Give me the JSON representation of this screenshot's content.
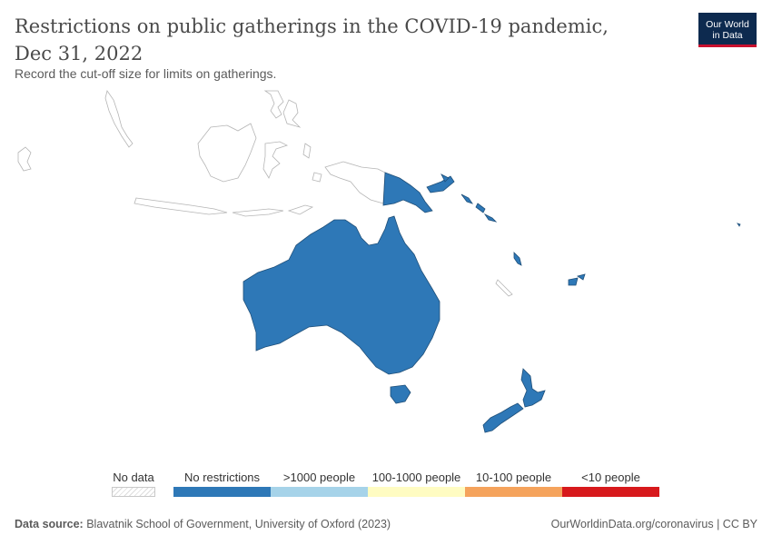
{
  "header": {
    "title": "Restrictions on public gatherings in the COVID-19 pandemic, Dec 31, 2022",
    "subtitle": "Record the cut-off size for limits on gatherings."
  },
  "logo": {
    "line1": "Our World",
    "line2": "in Data"
  },
  "legend": {
    "no_data_label": "No data",
    "categories": [
      {
        "label": "No restrictions",
        "color": "#2e78b7"
      },
      {
        "label": ">1000 people",
        "color": "#a6d3e9"
      },
      {
        "label": "100-1000 people",
        "color": "#fffcc2"
      },
      {
        "label": "10-100 people",
        "color": "#f5a35c"
      },
      {
        "label": "<10 people",
        "color": "#d7191c"
      }
    ]
  },
  "map_data": {
    "region": "Oceania",
    "countries": [
      {
        "name": "Australia",
        "category": "No restrictions"
      },
      {
        "name": "New Zealand",
        "category": "No restrictions"
      },
      {
        "name": "Papua New Guinea",
        "category": "No restrictions"
      },
      {
        "name": "Solomon Islands",
        "category": "No restrictions"
      },
      {
        "name": "Vanuatu",
        "category": "No restrictions"
      },
      {
        "name": "Fiji",
        "category": "No restrictions"
      },
      {
        "name": "Kiribati",
        "category": "No restrictions"
      }
    ],
    "fill_color": "#2e78b7",
    "no_data_outline": "#b5b5b5"
  },
  "footer": {
    "source_label": "Data source:",
    "source_text": "Blavatnik School of Government, University of Oxford (2023)",
    "right_text": "OurWorldinData.org/coronavirus | CC BY"
  }
}
